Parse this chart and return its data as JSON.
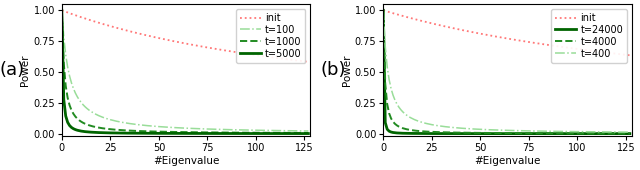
{
  "n_eigenvalues": 128,
  "panel_a": {
    "label": "(a)",
    "curves": [
      {
        "label": "init",
        "color": "#ff7777",
        "linestyle": "dotted",
        "linewidth": 1.3,
        "type": "power",
        "k": 0.007,
        "p": 0.85
      },
      {
        "label": "t=100",
        "color": "#99dd99",
        "linestyle": "dashdot",
        "linewidth": 1.1,
        "type": "power",
        "k": 0.25,
        "p": 1.1
      },
      {
        "label": "t=1000",
        "color": "#228B22",
        "linestyle": "dashed",
        "linewidth": 1.4,
        "type": "power",
        "k": 0.6,
        "p": 1.2
      },
      {
        "label": "t=5000",
        "color": "#006400",
        "linestyle": "solid",
        "linewidth": 2.0,
        "type": "power",
        "k": 1.5,
        "p": 1.4
      }
    ]
  },
  "panel_b": {
    "label": "(b)",
    "curves": [
      {
        "label": "init",
        "color": "#ff7777",
        "linestyle": "dotted",
        "linewidth": 1.3,
        "type": "power",
        "k": 0.006,
        "p": 0.8
      },
      {
        "label": "t=24000",
        "color": "#006400",
        "linestyle": "solid",
        "linewidth": 2.0,
        "type": "power",
        "k": 3.5,
        "p": 1.6
      },
      {
        "label": "t=4000",
        "color": "#228B22",
        "linestyle": "dashed",
        "linewidth": 1.4,
        "type": "power",
        "k": 1.0,
        "p": 1.3
      },
      {
        "label": "t=400",
        "color": "#99dd99",
        "linestyle": "dashdot",
        "linewidth": 1.1,
        "type": "power",
        "k": 0.35,
        "p": 1.15
      }
    ]
  },
  "xlabel": "#Eigenvalue",
  "ylabel": "Power",
  "xlim": [
    0,
    128
  ],
  "ylim": [
    -0.02,
    1.05
  ],
  "xticks": [
    0,
    25,
    50,
    75,
    100,
    125
  ],
  "yticks": [
    0.0,
    0.25,
    0.5,
    0.75,
    1.0
  ],
  "background_color": "#ffffff",
  "legend_fontsize": 7,
  "axis_fontsize": 7.5,
  "tick_fontsize": 7,
  "panel_label_fontsize": 13
}
